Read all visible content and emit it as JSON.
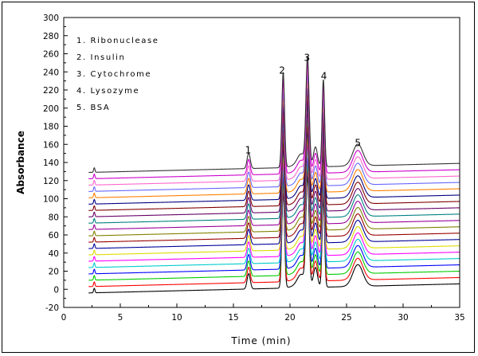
{
  "chart_data": {
    "type": "line",
    "xlabel": "Time (min)",
    "ylabel": "Absorbance",
    "xlim": [
      0,
      35
    ],
    "ylim": [
      -20,
      300
    ],
    "xticks": [
      0,
      5,
      10,
      15,
      20,
      25,
      30,
      35
    ],
    "yticks": [
      -20,
      0,
      20,
      40,
      60,
      80,
      100,
      120,
      140,
      160,
      180,
      200,
      220,
      240,
      260,
      280,
      300
    ],
    "grid": false,
    "legend": {
      "placement": "top-left",
      "entries": [
        "1. Ribonuclease",
        "2. Insulin",
        "3. Cytochrome",
        "4. Lysozyme",
        "5. BSA"
      ]
    },
    "peak_labels": [
      {
        "text": "1",
        "x": 16.3,
        "y": 150
      },
      {
        "text": "2",
        "x": 19.3,
        "y": 238
      },
      {
        "text": "3",
        "x": 21.5,
        "y": 252
      },
      {
        "text": "4",
        "x": 23.0,
        "y": 232
      },
      {
        "text": "5",
        "x": 26.0,
        "y": 158
      }
    ],
    "peaks": [
      {
        "t": 2.7,
        "h": 5,
        "w": 0.06
      },
      {
        "t": 16.35,
        "h": 17,
        "w": 0.14
      },
      {
        "t": 19.4,
        "h": 105,
        "w": 0.12
      },
      {
        "t": 21.0,
        "h": 14,
        "w": 0.35
      },
      {
        "t": 21.55,
        "h": 118,
        "w": 0.14
      },
      {
        "t": 22.25,
        "h": 22,
        "w": 0.18
      },
      {
        "t": 22.95,
        "h": 96,
        "w": 0.11
      },
      {
        "t": 26.0,
        "h": 24,
        "w": 0.45
      }
    ],
    "series": [
      {
        "color": "#000000",
        "baseline": -4,
        "drift": 10
      },
      {
        "color": "#ff0000",
        "baseline": 3,
        "drift": 10
      },
      {
        "color": "#00cc00",
        "baseline": 10,
        "drift": 10
      },
      {
        "color": "#0000ff",
        "baseline": 17,
        "drift": 10
      },
      {
        "color": "#00cccc",
        "baseline": 24,
        "drift": 10
      },
      {
        "color": "#ff00ff",
        "baseline": 31,
        "drift": 10
      },
      {
        "color": "#dddd00",
        "baseline": 38,
        "drift": 10
      },
      {
        "color": "#000099",
        "baseline": 45,
        "drift": 10
      },
      {
        "color": "#990000",
        "baseline": 52,
        "drift": 10
      },
      {
        "color": "#808000",
        "baseline": 59,
        "drift": 10
      },
      {
        "color": "#990099",
        "baseline": 66,
        "drift": 10
      },
      {
        "color": "#008080",
        "baseline": 73,
        "drift": 10
      },
      {
        "color": "#660066",
        "baseline": 80,
        "drift": 10
      },
      {
        "color": "#800000",
        "baseline": 87,
        "drift": 10
      },
      {
        "color": "#000080",
        "baseline": 94,
        "drift": 10
      },
      {
        "color": "#ff8000",
        "baseline": 101,
        "drift": 10
      },
      {
        "color": "#6666ff",
        "baseline": 108,
        "drift": 10
      },
      {
        "color": "#ff66cc",
        "baseline": 115,
        "drift": 10
      },
      {
        "color": "#cc00cc",
        "baseline": 122,
        "drift": 10
      },
      {
        "color": "#333333",
        "baseline": 129,
        "drift": 10
      }
    ]
  }
}
